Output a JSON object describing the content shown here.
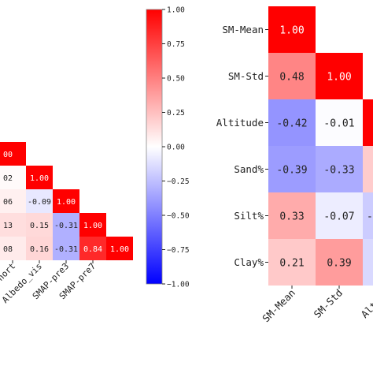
{
  "chart_data": [
    {
      "type": "heatmap",
      "title": "",
      "triangle": "lower",
      "cropped": "left",
      "visible_x_labels": [
        "o_short",
        "Albedo_vis",
        "SMAP-pre3",
        "SMAP-pre7"
      ],
      "rows": [
        {
          "cells": [
            {
              "col": 1,
              "label": "00",
              "value": 1.0
            }
          ]
        },
        {
          "cells": [
            {
              "col": 1,
              "label": "02",
              "value": 0.02
            },
            {
              "col": 2,
              "label": "1.00",
              "value": 1.0
            }
          ]
        },
        {
          "cells": [
            {
              "col": 1,
              "label": "06",
              "value": 0.06
            },
            {
              "col": 2,
              "label": "-0.09",
              "value": -0.09
            },
            {
              "col": 3,
              "label": "1.00",
              "value": 1.0
            }
          ]
        },
        {
          "cells": [
            {
              "col": 1,
              "label": "13",
              "value": 0.13
            },
            {
              "col": 2,
              "label": "0.15",
              "value": 0.15
            },
            {
              "col": 3,
              "label": "-0.31",
              "value": -0.31
            },
            {
              "col": 4,
              "label": "1.00",
              "value": 1.0
            }
          ]
        },
        {
          "cells": [
            {
              "col": 1,
              "label": "08",
              "value": 0.08
            },
            {
              "col": 2,
              "label": "0.16",
              "value": 0.16
            },
            {
              "col": 3,
              "label": "-0.31",
              "value": -0.31
            },
            {
              "col": 4,
              "label": "0.84",
              "value": 0.84
            },
            {
              "col": 5,
              "label": "1.00",
              "value": 1.0
            }
          ]
        }
      ],
      "colorbar": {
        "range": [
          -1.0,
          1.0
        ],
        "ticks": [
          {
            "value": 1.0,
            "label": "1.00"
          },
          {
            "value": 0.75,
            "label": "0.75"
          },
          {
            "value": 0.5,
            "label": "0.50"
          },
          {
            "value": 0.25,
            "label": "0.25"
          },
          {
            "value": 0.0,
            "label": "0.00"
          },
          {
            "value": -0.25,
            "label": "−0.25"
          },
          {
            "value": -0.5,
            "label": "−0.50"
          },
          {
            "value": -0.75,
            "label": "−0.75"
          },
          {
            "value": -1.0,
            "label": "−1.00"
          }
        ]
      }
    },
    {
      "type": "heatmap",
      "title": "",
      "triangle": "lower",
      "cropped": "right",
      "row_labels": [
        "SM-Mean",
        "SM-Std",
        "Altitude",
        "Sand%",
        "Silt%",
        "Clay%"
      ],
      "col_labels": [
        "SM-Mean",
        "SM-Std",
        "Altitu"
      ],
      "rows": [
        {
          "cells": [
            {
              "col": 0,
              "label": "1.00",
              "value": 1.0
            }
          ]
        },
        {
          "cells": [
            {
              "col": 0,
              "label": "0.48",
              "value": 0.48
            },
            {
              "col": 1,
              "label": "1.00",
              "value": 1.0
            }
          ]
        },
        {
          "cells": [
            {
              "col": 0,
              "label": "-0.42",
              "value": -0.42
            },
            {
              "col": 1,
              "label": "-0.01",
              "value": -0.01
            },
            {
              "col": 2,
              "label": "",
              "value": 1.0
            }
          ]
        },
        {
          "cells": [
            {
              "col": 0,
              "label": "-0.39",
              "value": -0.39
            },
            {
              "col": 1,
              "label": "-0.33",
              "value": -0.33
            },
            {
              "col": 2,
              "label": "",
              "value": 0.2
            }
          ]
        },
        {
          "cells": [
            {
              "col": 0,
              "label": "0.33",
              "value": 0.33
            },
            {
              "col": 1,
              "label": "-0.07",
              "value": -0.07
            },
            {
              "col": 2,
              "label": "-",
              "value": -0.2
            }
          ]
        },
        {
          "cells": [
            {
              "col": 0,
              "label": "0.21",
              "value": 0.21
            },
            {
              "col": 1,
              "label": "0.39",
              "value": 0.39
            },
            {
              "col": 2,
              "label": "",
              "value": -0.15
            }
          ]
        }
      ]
    }
  ]
}
